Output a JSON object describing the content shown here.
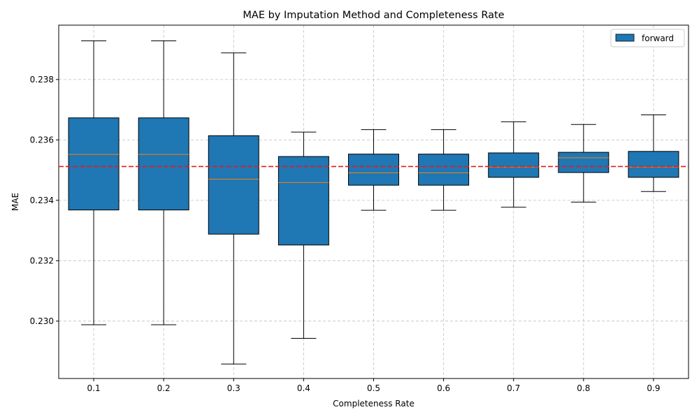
{
  "chart_data": {
    "type": "box",
    "title": "MAE by Imputation Method and Completeness Rate",
    "xlabel": "Completeness Rate",
    "ylabel": "MAE",
    "categories": [
      "0.1",
      "0.2",
      "0.3",
      "0.4",
      "0.5",
      "0.6",
      "0.7",
      "0.8",
      "0.9"
    ],
    "series": [
      {
        "name": "forward",
        "color": "#1f77b4",
        "boxes": [
          {
            "whisker_low": 0.22988,
            "q1": 0.23368,
            "median": 0.23552,
            "q3": 0.23673,
            "whisker_high": 0.23928
          },
          {
            "whisker_low": 0.22988,
            "q1": 0.23368,
            "median": 0.23552,
            "q3": 0.23673,
            "whisker_high": 0.23928
          },
          {
            "whisker_low": 0.22858,
            "q1": 0.23288,
            "median": 0.2347,
            "q3": 0.23614,
            "whisker_high": 0.23888
          },
          {
            "whisker_low": 0.22943,
            "q1": 0.23252,
            "median": 0.23459,
            "q3": 0.23545,
            "whisker_high": 0.23626
          },
          {
            "whisker_low": 0.23367,
            "q1": 0.2345,
            "median": 0.23491,
            "q3": 0.23553,
            "whisker_high": 0.23634
          },
          {
            "whisker_low": 0.23367,
            "q1": 0.2345,
            "median": 0.23491,
            "q3": 0.23553,
            "whisker_high": 0.23634
          },
          {
            "whisker_low": 0.23377,
            "q1": 0.23476,
            "median": 0.2351,
            "q3": 0.23557,
            "whisker_high": 0.2366
          },
          {
            "whisker_low": 0.23394,
            "q1": 0.23492,
            "median": 0.23541,
            "q3": 0.23559,
            "whisker_high": 0.23651
          },
          {
            "whisker_low": 0.23429,
            "q1": 0.23476,
            "median": 0.2351,
            "q3": 0.23562,
            "whisker_high": 0.23683
          }
        ]
      }
    ],
    "reference_line": {
      "value": 0.23512,
      "color": "#e41a1c",
      "style": "dashed"
    },
    "yticks": [
      0.23,
      0.232,
      0.234,
      0.236,
      0.238
    ],
    "ytick_labels": [
      "0.230",
      "0.232",
      "0.234",
      "0.236",
      "0.238"
    ],
    "ylim": [
      0.2281,
      0.2398
    ],
    "grid": true,
    "legend_position": "top-right",
    "median_color": "#ff7f0e"
  }
}
